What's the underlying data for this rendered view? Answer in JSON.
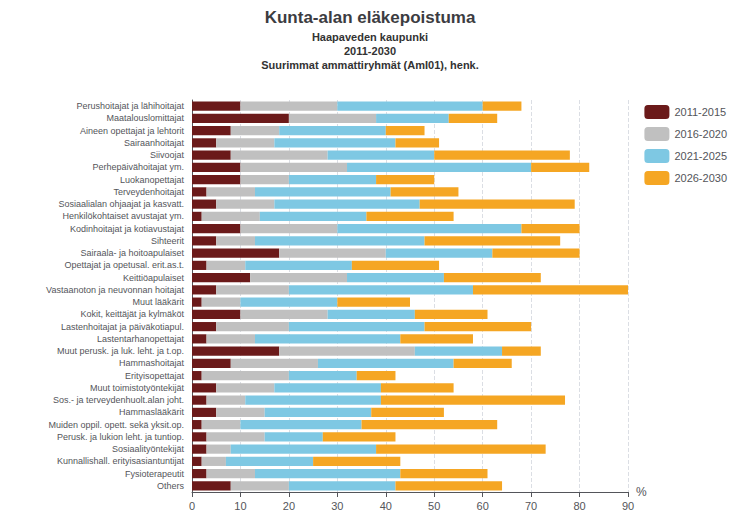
{
  "chart_data": {
    "type": "bar",
    "orientation": "horizontal",
    "stacked": true,
    "title": "Kunta-alan eläkepoistuma",
    "subtitle": [
      "Haapaveden kaupunki",
      "2011-2030",
      "Suurimmat ammattiryhmät (AmI01), henk."
    ],
    "xlabel": "%",
    "categories": [
      "Perushoitajat ja lähihoitajat",
      "Maatalouslomittajat",
      "Aineen opettajat ja lehtorit",
      "Sairaanhoitajat",
      "Siivoojat",
      "Perhepäivähoitajat ym.",
      "Luokanopettajat",
      "Terveydenhoitajat",
      "Sosiaalialan ohjaajat ja kasvatt.",
      "Henkilökohtaiset avustajat ym.",
      "Kodinhoitajat ja kotiavustajat",
      "Sihteerit",
      "Sairaala- ja hoitoapulaiset",
      "Opettajat ja opetusal. erit.as.t.",
      "Keittiöapulaiset",
      "Vastaanoton ja neuvonnan hoitajat",
      "Muut lääkärit",
      "Kokit, keittäjät ja kylmäköt",
      "Lastenhoitajat ja päiväkotiapul.",
      "Lastentarhanopettajat",
      "Muut perusk. ja luk. leht. ja t.op.",
      "Hammashoitajat",
      "Erityisopettajat",
      "Muut toimistotyöntekijät",
      "Sos.- ja terveydenhuolt.alan joht.",
      "Hammaslääkärit",
      "Muiden oppil. opett. sekä yksit.op.",
      "Perusk. ja lukion leht. ja tuntiop.",
      "Sosiaalityöntekijät",
      "Kunnallishall. erityisasiantuntijat",
      "Fysioterapeutit",
      "Others"
    ],
    "series": [
      {
        "name": "2011-2015",
        "color": "#6B1A1A",
        "values": [
          10,
          20,
          8,
          5,
          8,
          10,
          10,
          3,
          5,
          2,
          10,
          5,
          18,
          3,
          12,
          5,
          2,
          10,
          5,
          3,
          18,
          8,
          2,
          5,
          3,
          5,
          2,
          3,
          3,
          2,
          3,
          8
        ]
      },
      {
        "name": "2016-2020",
        "color": "#C0C0C0",
        "values": [
          20,
          18,
          10,
          12,
          20,
          22,
          10,
          10,
          12,
          12,
          20,
          8,
          22,
          8,
          20,
          15,
          8,
          18,
          15,
          10,
          28,
          18,
          18,
          12,
          8,
          10,
          8,
          12,
          5,
          5,
          10,
          12
        ]
      },
      {
        "name": "2021-2025",
        "color": "#7EC8E3",
        "values": [
          30,
          15,
          22,
          25,
          22,
          38,
          18,
          28,
          30,
          22,
          38,
          35,
          22,
          22,
          20,
          38,
          20,
          18,
          28,
          30,
          18,
          28,
          14,
          22,
          28,
          22,
          25,
          12,
          30,
          18,
          30,
          22
        ]
      },
      {
        "name": "2026-2030",
        "color": "#F5A623",
        "values": [
          8,
          10,
          8,
          9,
          28,
          12,
          12,
          14,
          32,
          18,
          12,
          28,
          18,
          18,
          20,
          32,
          15,
          15,
          22,
          15,
          8,
          12,
          8,
          15,
          38,
          15,
          28,
          15,
          35,
          18,
          18,
          22
        ]
      }
    ],
    "xlim": [
      0,
      90
    ],
    "xticks": [
      0,
      10,
      20,
      30,
      40,
      50,
      60,
      70,
      80,
      90
    ],
    "grid": true,
    "legend": "right"
  }
}
